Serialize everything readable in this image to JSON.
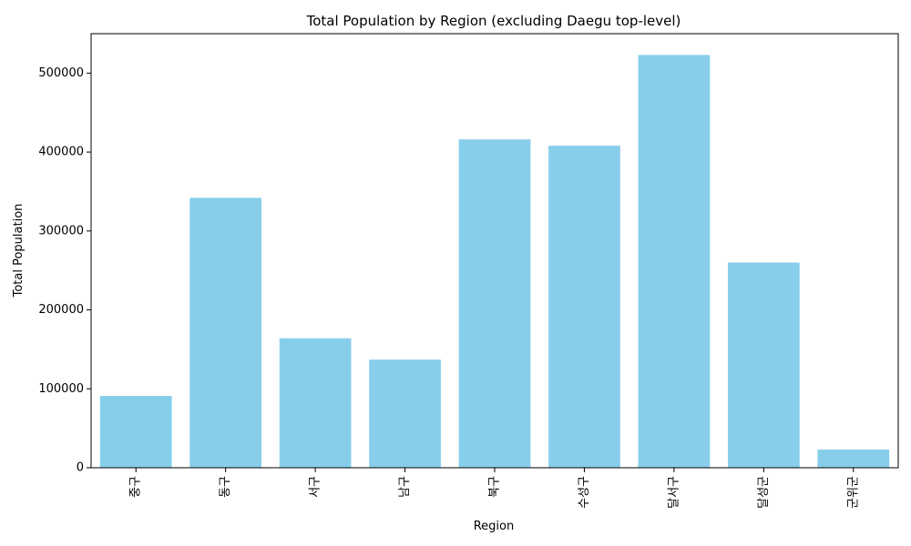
{
  "chart_data": {
    "type": "bar",
    "title": "Total Population by Region (excluding Daegu top-level)",
    "xlabel": "Region",
    "ylabel": "Total Population",
    "categories": [
      "중구",
      "동구",
      "서구",
      "남구",
      "북구",
      "수성구",
      "달서구",
      "달성군",
      "군위군"
    ],
    "values": [
      91000,
      342000,
      164000,
      137000,
      416000,
      408000,
      523000,
      260000,
      23000
    ],
    "ylim": [
      0,
      550000
    ],
    "yticks": [
      0,
      100000,
      200000,
      300000,
      400000,
      500000
    ],
    "ytick_labels": [
      "0",
      "100000",
      "200000",
      "300000",
      "400000",
      "500000"
    ],
    "bar_color": "#87ceeb",
    "grid": false,
    "legend": "none"
  }
}
